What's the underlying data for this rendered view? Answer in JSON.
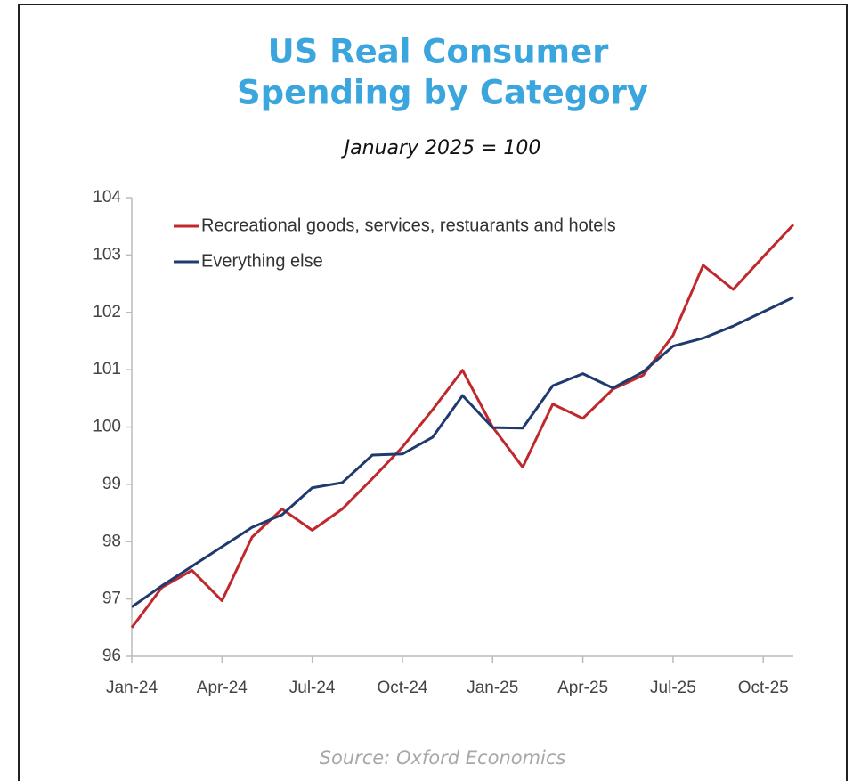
{
  "chart_data": {
    "type": "line",
    "title": [
      "US Real Consumer",
      "Spending by Category"
    ],
    "subtitle": "January 2025 = 100",
    "source": "Source: Oxford Economics",
    "categories": [
      "Jan-24",
      null,
      null,
      "Apr-24",
      null,
      null,
      "Jul-24",
      null,
      null,
      "Oct-24",
      null,
      null,
      "Jan-25",
      null,
      null,
      "Apr-25",
      null,
      null,
      "Jul-25",
      null,
      null,
      "Oct-25",
      null
    ],
    "series": [
      {
        "name": "Recreational goods, services, restuarants and hotels",
        "color": "#c0282d",
        "values": [
          96.5,
          97.2,
          97.5,
          96.97,
          98.08,
          98.57,
          98.2,
          98.57,
          99.1,
          99.65,
          100.3,
          100.99,
          100.0,
          99.3,
          100.4,
          100.15,
          100.66,
          100.9,
          101.6,
          102.82,
          102.4,
          102.97,
          103.53
        ]
      },
      {
        "name": "Everything else",
        "color": "#1f3a6e",
        "values": [
          96.86,
          97.23,
          97.57,
          97.91,
          98.25,
          98.47,
          98.94,
          99.03,
          99.51,
          99.53,
          99.82,
          100.55,
          99.99,
          99.98,
          100.72,
          100.93,
          100.68,
          100.96,
          101.41,
          101.55,
          101.76,
          102.01,
          102.26
        ]
      }
    ],
    "ylim": [
      96,
      104
    ],
    "yticks": [
      96,
      97,
      98,
      99,
      100,
      101,
      102,
      103,
      104
    ],
    "grid": false,
    "legend": "upper left"
  }
}
